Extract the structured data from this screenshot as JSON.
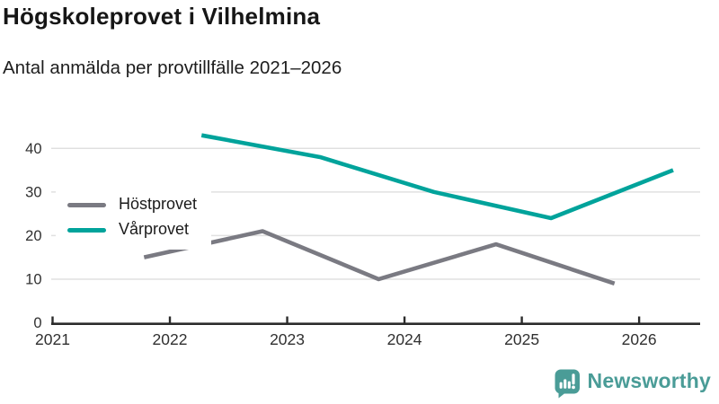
{
  "header": {
    "title": "Högskoleprovet i Vilhelmina",
    "subtitle": "Antal anmälda per provtillfälle 2021–2026"
  },
  "legend": [
    {
      "label": "Höstprovet",
      "color": "#7a7a82"
    },
    {
      "label": "Vårprovet",
      "color": "#00a39b"
    }
  ],
  "branding": {
    "name": "Newsworthy",
    "color": "#4a9c97",
    "icon": "newsworthy-speech-bubble-bar-chart-icon"
  },
  "colors": {
    "gridline": "#e0e0e0",
    "axis": "#2b2b2b",
    "tick_label": "#303030",
    "background": "#ffffff"
  },
  "chart_data": {
    "type": "line",
    "title": "Högskoleprovet i Vilhelmina",
    "subtitle": "Antal anmälda per provtillfälle 2021–2026",
    "xlabel": "",
    "ylabel": "",
    "grid": "horizontal",
    "legend_position": "inside-upper-left",
    "x_axis": {
      "ticks": [
        2021,
        2022,
        2023,
        2024,
        2025,
        2026
      ],
      "range": [
        2021,
        2026.52
      ]
    },
    "y_axis": {
      "ticks": [
        0,
        10,
        20,
        30,
        40
      ],
      "range": [
        0,
        45.2
      ]
    },
    "series": [
      {
        "name": "Höstprovet",
        "color": "#7a7a82",
        "points": [
          {
            "x": 2021.78,
            "value": 15
          },
          {
            "x": 2022.79,
            "value": 21
          },
          {
            "x": 2023.78,
            "value": 10
          },
          {
            "x": 2024.78,
            "value": 18
          },
          {
            "x": 2025.79,
            "value": 9
          }
        ]
      },
      {
        "name": "Vårprovet",
        "color": "#00a39b",
        "points": [
          {
            "x": 2022.27,
            "value": 43
          },
          {
            "x": 2023.28,
            "value": 38
          },
          {
            "x": 2024.25,
            "value": 30
          },
          {
            "x": 2025.25,
            "value": 24
          },
          {
            "x": 2026.29,
            "value": 35
          }
        ]
      }
    ]
  }
}
